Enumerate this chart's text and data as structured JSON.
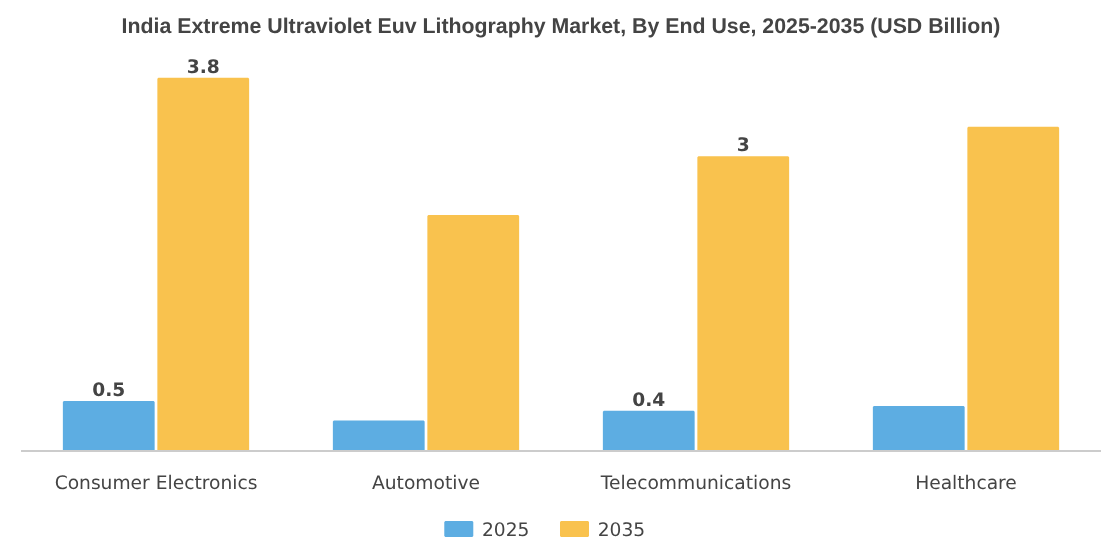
{
  "chart_data": {
    "type": "bar",
    "title": "India Extreme Ultraviolet Euv Lithography Market, By End Use, 2025-2035 (USD Billion)",
    "categories": [
      "Consumer Electronics",
      "Automotive",
      "Telecommunications",
      "Healthcare"
    ],
    "series": [
      {
        "name": "2025",
        "color": "#5dade2",
        "values": [
          0.5,
          0.3,
          0.4,
          0.45
        ],
        "value_labels": [
          "0.5",
          null,
          "0.4",
          null
        ]
      },
      {
        "name": "2035",
        "color": "#f9c24e",
        "values": [
          3.8,
          2.4,
          3.0,
          3.3
        ],
        "value_labels": [
          "3.8",
          null,
          "3",
          null
        ]
      }
    ],
    "legend": "bottom"
  }
}
